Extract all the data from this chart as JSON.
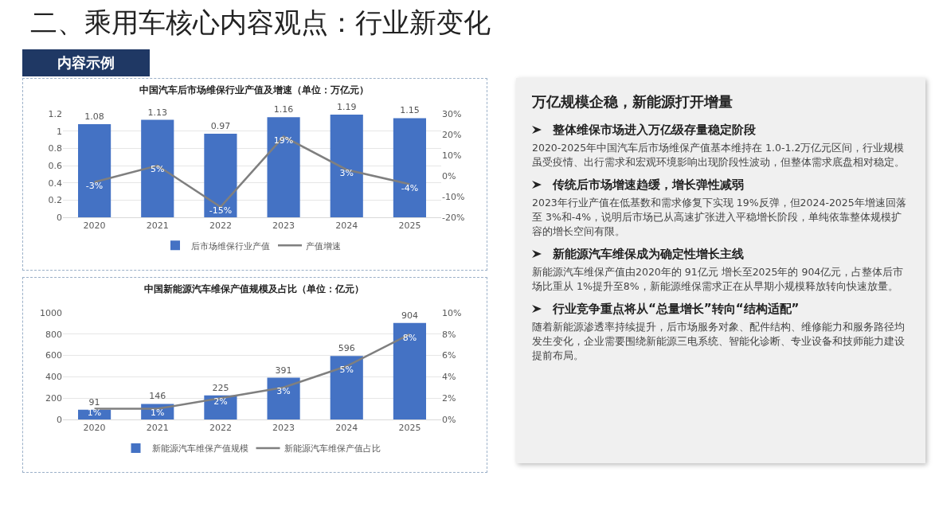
{
  "chart_data": [
    {
      "type": "other",
      "title": "二、乘用车核心内容观点：行业新变化",
      "annotations": [
        "内容示例"
      ]
    },
    {
      "type": "bar",
      "title": "中国汽车后市场维保行业产值及增速（单位：万亿元）",
      "categories": [
        "2020",
        "2021",
        "2022",
        "2023",
        "2024",
        "2025"
      ],
      "series": [
        {
          "name": "后市场维保行业产值",
          "color": "#4472c4",
          "values": [
            1.08,
            1.13,
            0.97,
            1.16,
            1.19,
            1.15
          ]
        },
        {
          "type": "line",
          "axis": "y2",
          "name": "产值增速",
          "color": "#7f7f7f",
          "values": [
            -3,
            5,
            -15,
            19,
            3,
            -4
          ],
          "value_labels": [
            "-3%",
            "5%",
            "-15%",
            "19%",
            "3%",
            "-4%"
          ]
        }
      ],
      "ylim": [
        0,
        1.2
      ],
      "yticks": [
        0,
        0.2,
        0.4,
        0.6,
        0.8,
        1,
        1.2
      ],
      "y2lim": [
        -20,
        30
      ],
      "y2ticks": [
        {
          "value": -20,
          "label": "-20%"
        },
        {
          "value": -10,
          "label": "-10%"
        },
        {
          "value": 0,
          "label": "0%"
        },
        {
          "value": 10,
          "label": "10%"
        },
        {
          "value": 20,
          "label": "20%"
        },
        {
          "value": 30,
          "label": "30%"
        }
      ],
      "data_labels": true,
      "grid": "y",
      "legend": "bottom",
      "marker": "none"
    },
    {
      "type": "bar",
      "title": "中国新能源汽车维保产值规模及占比（单位：亿元）",
      "categories": [
        "2020",
        "2021",
        "2022",
        "2023",
        "2024",
        "2025"
      ],
      "series": [
        {
          "name": "新能源汽车维保产值规模",
          "color": "#4472c4",
          "values": [
            91,
            146,
            225,
            391,
            596,
            904
          ]
        },
        {
          "type": "line",
          "axis": "y2",
          "name": "新能源汽车维保产值占比",
          "color": "#7f7f7f",
          "values": [
            1,
            1,
            2,
            3,
            5,
            8
          ],
          "value_labels": [
            "1%",
            "1%",
            "2%",
            "3%",
            "5%",
            "8%"
          ]
        }
      ],
      "ylim": [
        0,
        1000
      ],
      "yticks": [
        0,
        200,
        400,
        600,
        800,
        1000
      ],
      "y2lim": [
        0,
        10
      ],
      "y2ticks": [
        {
          "value": 0,
          "label": "0%"
        },
        {
          "value": 2,
          "label": "2%"
        },
        {
          "value": 4,
          "label": "4%"
        },
        {
          "value": 6,
          "label": "6%"
        },
        {
          "value": 8,
          "label": "8%"
        },
        {
          "value": 10,
          "label": "10%"
        }
      ],
      "data_labels": true,
      "grid": "y",
      "legend": "bottom",
      "marker": "none"
    },
    {
      "type": "other",
      "title": "万亿规模企稳，新能源打开增量",
      "annotations": [
        "整体维保市场进入万亿级存量稳定阶段",
        "2020-2025年中国汽车后市场维保产值基本维持在 1.0-1.2万亿元区间，行业规模虽受疫情、出行需求和宏观环境影响出现阶段性波动，但整体需求底盘相对稳定。",
        "传统后市场增速趋缓，增长弹性减弱",
        "2023年行业产值在低基数和需求修复下实现 19%反弹，但2024-2025年增速回落至 3%和-4%，说明后市场已从高速扩张进入平稳增长阶段，单纯依靠整体规模扩容的增长空间有限。",
        "新能源汽车维保成为确定性增长主线",
        "新能源汽车维保产值由2020年的 91亿元 增长至2025年的 904亿元，占整体后市场比重从 1%提升至8%，新能源维保需求正在从早期小规模释放转向快速放量。",
        "行业竞争重点将从“总量增长”转向“结构适配”",
        "随着新能源渗透率持续提升，后市场服务对象、配件结构、维修能力和服务路径均发生变化，企业需要围绕新能源三电系统、智能化诊断、专业设备和技师能力建设提前布局。"
      ]
    }
  ]
}
